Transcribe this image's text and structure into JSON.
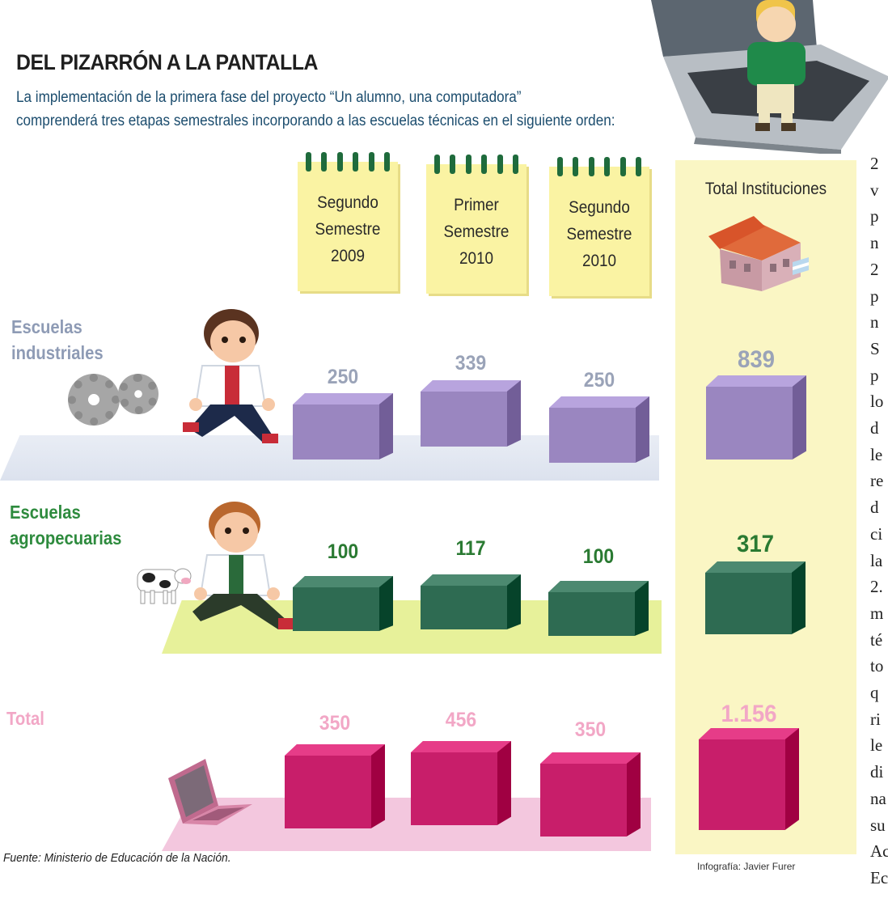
{
  "header": {
    "title": "DEL PIZARRÓN A LA PANTALLA",
    "subtitle_line1": "La implementación de la primera fase del proyecto “Un alumno, una computadora”",
    "subtitle_line2": "comprenderá tres etapas semestrales incorporando a las escuelas técnicas en el siguiente orden:"
  },
  "columns": [
    {
      "line1": "Segundo",
      "line2": "Semestre",
      "line3": "2009"
    },
    {
      "line1": "Primer",
      "line2": "Semestre",
      "line3": "2010"
    },
    {
      "line1": "Segundo",
      "line2": "Semestre",
      "line3": "2010"
    }
  ],
  "total_column_label": "Total Instituciones",
  "rows": [
    {
      "label_line1": "Escuelas",
      "label_line2": "industriales",
      "values": [
        "250",
        "339",
        "250"
      ],
      "total": "839",
      "label_color": "#8e9bb5",
      "value_color": "#9aa3b8",
      "total_color": "#9aa3b8"
    },
    {
      "label_line1": "Escuelas",
      "label_line2": "agropecuarias",
      "values": [
        "100",
        "117",
        "100"
      ],
      "total": "317",
      "label_color": "#2e8b3e",
      "value_color": "#2a7a32",
      "total_color": "#2a7a32"
    },
    {
      "label_line1": "Total",
      "label_line2": "",
      "values": [
        "350",
        "456",
        "350"
      ],
      "total": "1.156",
      "label_color": "#f2a7c6",
      "value_color": "#f2a7c6",
      "total_color": "#f2a7c6"
    }
  ],
  "colors": {
    "industrial_cube": "#9a86c0",
    "agro_cube": "#2e6b52",
    "total_cube": "#c81e6a",
    "notepad": "#faf3a3",
    "total_column_bg": "#faf6c4"
  },
  "footer": {
    "source_prefix": "Fuente:",
    "source_text": " Ministerio de Educación de la Nación.",
    "credit": "Infografía: Javier Furer"
  },
  "margin_text": [
    "2",
    "v",
    "p",
    "n",
    "2",
    "p",
    "n",
    "S",
    "p",
    "lo",
    "d",
    "le",
    "re",
    "d",
    "ci",
    "la",
    "2.",
    "m",
    "té",
    "to",
    "q",
    "ri",
    "le",
    "di",
    "na",
    "su",
    "Ac",
    "Ec"
  ]
}
